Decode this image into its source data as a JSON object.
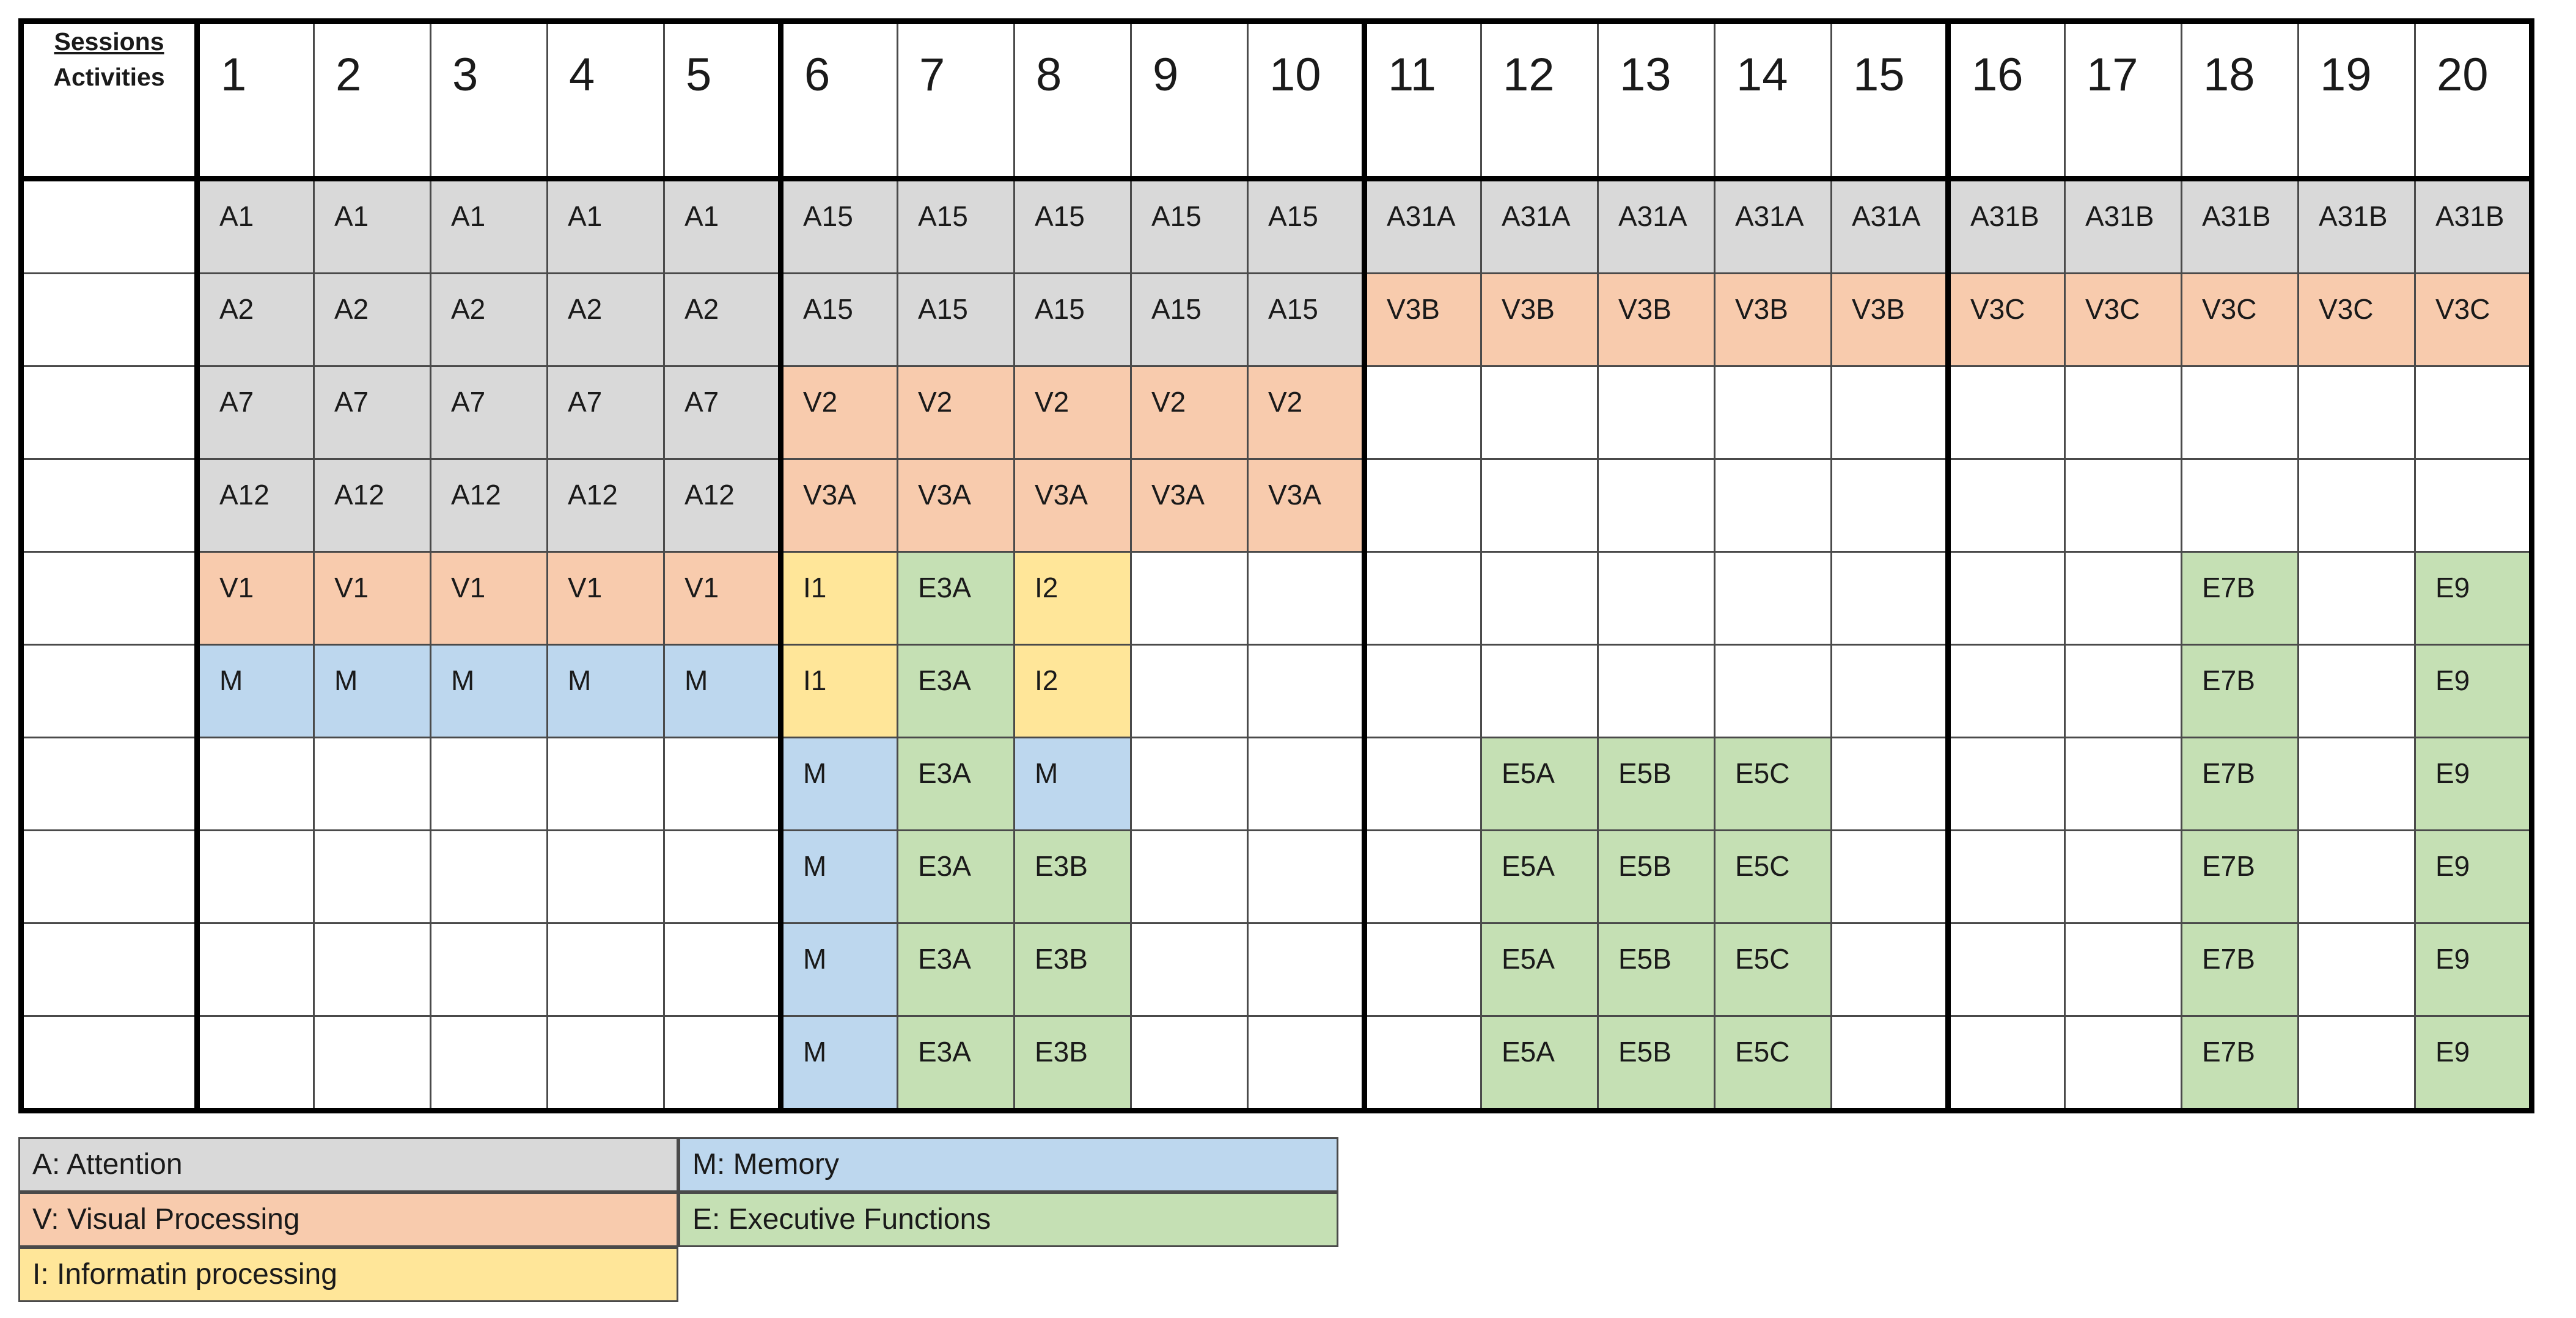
{
  "header": {
    "corner_top": "Sessions",
    "corner_bottom": "Activities",
    "sessions": [
      "1",
      "2",
      "3",
      "4",
      "5",
      "6",
      "7",
      "8",
      "9",
      "10",
      "11",
      "12",
      "13",
      "14",
      "15",
      "16",
      "17",
      "18",
      "19",
      "20"
    ]
  },
  "rows": [
    [
      "A1",
      "A1",
      "A1",
      "A1",
      "A1",
      "A15",
      "A15",
      "A15",
      "A15",
      "A15",
      "A31A",
      "A31A",
      "A31A",
      "A31A",
      "A31A",
      "A31B",
      "A31B",
      "A31B",
      "A31B",
      "A31B"
    ],
    [
      "A2",
      "A2",
      "A2",
      "A2",
      "A2",
      "A15",
      "A15",
      "A15",
      "A15",
      "A15",
      "V3B",
      "V3B",
      "V3B",
      "V3B",
      "V3B",
      "V3C",
      "V3C",
      "V3C",
      "V3C",
      "V3C"
    ],
    [
      "A7",
      "A7",
      "A7",
      "A7",
      "A7",
      "V2",
      "V2",
      "V2",
      "V2",
      "V2",
      "",
      "",
      "",
      "",
      "",
      "",
      "",
      "",
      "",
      ""
    ],
    [
      "A12",
      "A12",
      "A12",
      "A12",
      "A12",
      "V3A",
      "V3A",
      "V3A",
      "V3A",
      "V3A",
      "",
      "",
      "",
      "",
      "",
      "",
      "",
      "",
      "",
      ""
    ],
    [
      "V1",
      "V1",
      "V1",
      "V1",
      "V1",
      "I1",
      "E3A",
      "I2",
      "",
      "",
      "",
      "",
      "",
      "",
      "",
      "",
      "",
      "E7B",
      "",
      "E9"
    ],
    [
      "M",
      "M",
      "M",
      "M",
      "M",
      "I1",
      "E3A",
      "I2",
      "",
      "",
      "",
      "",
      "",
      "",
      "",
      "",
      "",
      "E7B",
      "",
      "E9"
    ],
    [
      "",
      "",
      "",
      "",
      "",
      "M",
      "E3A",
      "M",
      "",
      "",
      "",
      "E5A",
      "E5B",
      "E5C",
      "",
      "",
      "",
      "E7B",
      "",
      "E9"
    ],
    [
      "",
      "",
      "",
      "",
      "",
      "M",
      "E3A",
      "E3B",
      "",
      "",
      "",
      "E5A",
      "E5B",
      "E5C",
      "",
      "",
      "",
      "E7B",
      "",
      "E9"
    ],
    [
      "",
      "",
      "",
      "",
      "",
      "M",
      "E3A",
      "E3B",
      "",
      "",
      "",
      "E5A",
      "E5B",
      "E5C",
      "",
      "",
      "",
      "E7B",
      "",
      "E9"
    ],
    [
      "",
      "",
      "",
      "",
      "",
      "M",
      "E3A",
      "E3B",
      "",
      "",
      "",
      "E5A",
      "E5B",
      "E5C",
      "",
      "",
      "",
      "E7B",
      "",
      "E9"
    ]
  ],
  "colors": {
    "A": "#d9d9d9",
    "V": "#f8cbad",
    "I": "#ffe699",
    "M": "#bdd7ee",
    "E": "#c5e0b4"
  },
  "legend": [
    {
      "key": "A",
      "label": "A: Attention"
    },
    {
      "key": "M",
      "label": "M: Memory"
    },
    {
      "key": "V",
      "label": "V: Visual Processing"
    },
    {
      "key": "E",
      "label": "E: Executive Functions"
    },
    {
      "key": "I",
      "label": "I: Informatin processing"
    }
  ]
}
